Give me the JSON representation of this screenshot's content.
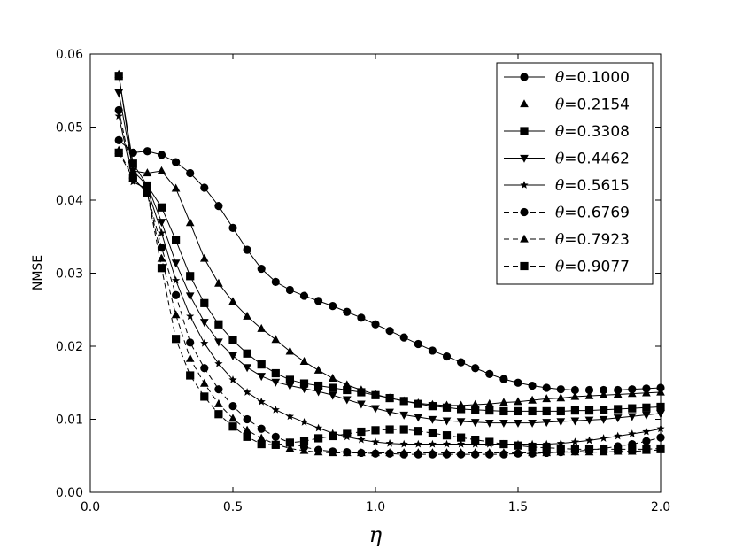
{
  "chart_data": {
    "type": "line",
    "title": "",
    "xlabel": "η",
    "ylabel": "NMSE",
    "xlim": [
      0.0,
      2.0
    ],
    "ylim": [
      0.0,
      0.06
    ],
    "xticks": [
      "0.0",
      "0.5",
      "1.0",
      "1.5",
      "2.0"
    ],
    "yticks": [
      "0.00",
      "0.01",
      "0.02",
      "0.03",
      "0.04",
      "0.05",
      "0.06"
    ],
    "grid": false,
    "legend_position": "top-right",
    "x": [
      0.1,
      0.15,
      0.2,
      0.25,
      0.3,
      0.35,
      0.4,
      0.45,
      0.5,
      0.55,
      0.6,
      0.65,
      0.7,
      0.75,
      0.8,
      0.85,
      0.9,
      0.95,
      1.0,
      1.05,
      1.1,
      1.15,
      1.2,
      1.25,
      1.3,
      1.35,
      1.4,
      1.45,
      1.5,
      1.55,
      1.6,
      1.65,
      1.7,
      1.75,
      1.8,
      1.85,
      1.9,
      1.95,
      2.0
    ],
    "series": [
      {
        "name": "θ=0.1000",
        "marker": "circle",
        "linestyle": "solid",
        "values": [
          0.0482,
          0.0465,
          0.0467,
          0.0462,
          0.0452,
          0.0437,
          0.0417,
          0.0392,
          0.0362,
          0.0332,
          0.0306,
          0.0288,
          0.0277,
          0.0269,
          0.0262,
          0.0255,
          0.0247,
          0.0239,
          0.023,
          0.0221,
          0.0212,
          0.0203,
          0.0194,
          0.0186,
          0.0178,
          0.017,
          0.0162,
          0.0155,
          0.015,
          0.0146,
          0.0143,
          0.0141,
          0.014,
          0.014,
          0.014,
          0.014,
          0.0141,
          0.0142,
          0.0143
        ]
      },
      {
        "name": "θ=0.2154",
        "marker": "triangle-up",
        "linestyle": "solid",
        "values": [
          0.0572,
          0.044,
          0.0437,
          0.044,
          0.0416,
          0.0369,
          0.032,
          0.0286,
          0.0261,
          0.0241,
          0.0224,
          0.0209,
          0.0193,
          0.0179,
          0.0167,
          0.0156,
          0.0147,
          0.014,
          0.0134,
          0.0129,
          0.0125,
          0.0122,
          0.012,
          0.0119,
          0.0119,
          0.012,
          0.0121,
          0.0123,
          0.0124,
          0.0126,
          0.0128,
          0.0129,
          0.0131,
          0.0132,
          0.0133,
          0.0134,
          0.0135,
          0.0136,
          0.0137
        ]
      },
      {
        "name": "θ=0.3308",
        "marker": "square",
        "linestyle": "solid",
        "values": [
          0.057,
          0.045,
          0.042,
          0.039,
          0.0345,
          0.0296,
          0.0259,
          0.023,
          0.0208,
          0.019,
          0.0175,
          0.0163,
          0.0154,
          0.0149,
          0.0146,
          0.0143,
          0.014,
          0.0137,
          0.0133,
          0.0129,
          0.0125,
          0.0121,
          0.0118,
          0.0116,
          0.0114,
          0.0113,
          0.0112,
          0.0111,
          0.0111,
          0.0111,
          0.0111,
          0.0111,
          0.0112,
          0.0112,
          0.0113,
          0.0114,
          0.0115,
          0.0116,
          0.0117
        ]
      },
      {
        "name": "θ=0.4462",
        "marker": "triangle-down",
        "linestyle": "solid",
        "values": [
          0.0547,
          0.044,
          0.042,
          0.037,
          0.0314,
          0.0269,
          0.0233,
          0.0206,
          0.0187,
          0.0171,
          0.0159,
          0.0151,
          0.0146,
          0.0142,
          0.0138,
          0.0133,
          0.0127,
          0.0121,
          0.0115,
          0.011,
          0.0106,
          0.0103,
          0.01,
          0.0098,
          0.0097,
          0.0096,
          0.0095,
          0.0095,
          0.0095,
          0.0095,
          0.0096,
          0.0097,
          0.0098,
          0.0099,
          0.01,
          0.0102,
          0.0104,
          0.0106,
          0.0108
        ]
      },
      {
        "name": "θ=0.5615",
        "marker": "star",
        "linestyle": "solid",
        "values": [
          0.0515,
          0.0425,
          0.0415,
          0.0355,
          0.029,
          0.0241,
          0.0204,
          0.0176,
          0.0154,
          0.0137,
          0.0124,
          0.0113,
          0.0104,
          0.0096,
          0.0088,
          0.0081,
          0.0076,
          0.0072,
          0.0069,
          0.0067,
          0.0066,
          0.0066,
          0.0066,
          0.0066,
          0.0066,
          0.0066,
          0.0066,
          0.0066,
          0.0066,
          0.0066,
          0.0066,
          0.0067,
          0.0069,
          0.0071,
          0.0074,
          0.0077,
          0.008,
          0.0083,
          0.0087
        ]
      },
      {
        "name": "θ=0.6769",
        "marker": "circle",
        "linestyle": "dashed",
        "values": [
          0.0523,
          0.043,
          0.041,
          0.0335,
          0.027,
          0.0205,
          0.017,
          0.0141,
          0.0118,
          0.01,
          0.0087,
          0.0076,
          0.0068,
          0.0062,
          0.0058,
          0.0056,
          0.0055,
          0.0054,
          0.0053,
          0.0053,
          0.0052,
          0.0052,
          0.0052,
          0.0052,
          0.0052,
          0.0052,
          0.0052,
          0.0052,
          0.0053,
          0.0053,
          0.0054,
          0.0055,
          0.0056,
          0.0058,
          0.006,
          0.0063,
          0.0066,
          0.007,
          0.0075
        ]
      },
      {
        "name": "θ=0.7923",
        "marker": "triangle-up",
        "linestyle": "dashed",
        "values": [
          0.0468,
          0.043,
          0.041,
          0.032,
          0.0243,
          0.0183,
          0.0149,
          0.0121,
          0.0101,
          0.0085,
          0.0074,
          0.0066,
          0.006,
          0.0057,
          0.0055,
          0.0054,
          0.0054,
          0.0054,
          0.0054,
          0.0054,
          0.0054,
          0.0054,
          0.0054,
          0.0054,
          0.0054,
          0.0054,
          0.0054,
          0.0054,
          0.0054,
          0.0054,
          0.0054,
          0.0055,
          0.0055,
          0.0055,
          0.0055,
          0.0056,
          0.0056,
          0.0057,
          0.0058
        ]
      },
      {
        "name": "θ=0.9077",
        "marker": "square",
        "linestyle": "dashed",
        "values": [
          0.0465,
          0.043,
          0.041,
          0.0307,
          0.021,
          0.016,
          0.0131,
          0.0107,
          0.009,
          0.0076,
          0.0066,
          0.0065,
          0.0068,
          0.007,
          0.0074,
          0.0077,
          0.008,
          0.0083,
          0.0085,
          0.0086,
          0.0086,
          0.0084,
          0.0081,
          0.0078,
          0.0075,
          0.0072,
          0.0069,
          0.0066,
          0.0064,
          0.0062,
          0.0061,
          0.006,
          0.0059,
          0.0059,
          0.0059,
          0.0059,
          0.0059,
          0.0059,
          0.006
        ]
      }
    ]
  }
}
